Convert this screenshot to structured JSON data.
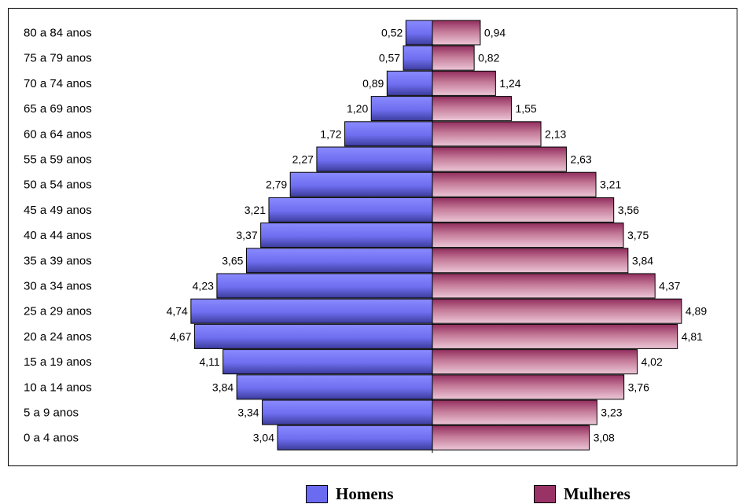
{
  "chart_data": {
    "type": "bar",
    "orientation": "horizontal",
    "layout": "population-pyramid",
    "categories": [
      "80 a 84 anos",
      "75 a 79 anos",
      "70 a 74 anos",
      "65 a 69 anos",
      "60 a 64 anos",
      "55 a 59 anos",
      "50 a 54 anos",
      "45 a 49 anos",
      "40 a 44 anos",
      "35 a 39 anos",
      "30 a 34 anos",
      "25 a 29 anos",
      "20 a 24 anos",
      "15 a 19 anos",
      "10 a 14 anos",
      "5 a 9 anos",
      "0 a 4 anos"
    ],
    "series": [
      {
        "name": "Homens",
        "side": "left",
        "color": "#6b6bf2",
        "values": [
          0.52,
          0.57,
          0.89,
          1.2,
          1.72,
          2.27,
          2.79,
          3.21,
          3.37,
          3.65,
          4.23,
          4.74,
          4.67,
          4.11,
          3.84,
          3.34,
          3.04
        ],
        "labels": [
          "0,52",
          "0,57",
          "0,89",
          "1,20",
          "1,72",
          "2,27",
          "2,79",
          "3,21",
          "3,37",
          "3,65",
          "4,23",
          "4,74",
          "4,67",
          "4,11",
          "3,84",
          "3,34",
          "3,04"
        ]
      },
      {
        "name": "Mulheres",
        "side": "right",
        "color": "#993366",
        "values": [
          0.94,
          0.82,
          1.24,
          1.55,
          2.13,
          2.63,
          3.21,
          3.56,
          3.75,
          3.84,
          4.37,
          4.89,
          4.81,
          4.02,
          3.76,
          3.23,
          3.08
        ],
        "labels": [
          "0,94",
          "0,82",
          "1,24",
          "1,55",
          "2,13",
          "2,63",
          "3,21",
          "3,56",
          "3,75",
          "3,84",
          "4,37",
          "4,89",
          "4,81",
          "4,02",
          "3,76",
          "3,23",
          "3,08"
        ]
      }
    ],
    "title": "",
    "xlabel": "",
    "ylabel": "",
    "grid": false,
    "legend": "bottom"
  },
  "legend": {
    "homens_label": "Homens",
    "mulheres_label": "Mulheres",
    "homens_color": "#6b6bf2",
    "mulheres_color": "#993366"
  }
}
